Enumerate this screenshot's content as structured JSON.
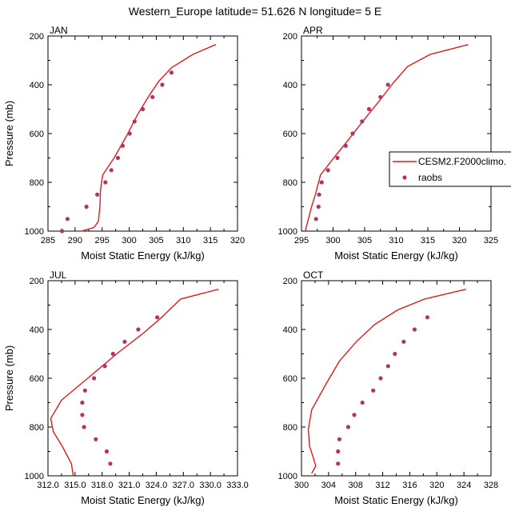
{
  "figure": {
    "title": "Western_Europe  latitude= 51.626 N longitude= 5 E"
  },
  "legend": {
    "entries": [
      {
        "label": "CESM2.F2000climo.",
        "color": "#e31a1c",
        "kind": "line"
      },
      {
        "label": "raobs",
        "color": "#b3326b",
        "kind": "marker"
      }
    ]
  },
  "chart_data": [
    {
      "type": "line",
      "panel_label": "JAN",
      "xlabel": "Moist Static Energy (kJ/kg)",
      "ylabel": "Pressure (mb)",
      "xlim": [
        285,
        320
      ],
      "ylim": [
        1000,
        200
      ],
      "x_ticks": [
        285,
        290,
        295,
        300,
        305,
        310,
        315,
        320
      ],
      "x_tick_labels": [
        "285",
        "290",
        "295",
        "300",
        "305",
        "310",
        "315",
        "320"
      ],
      "y_ticks": [
        200,
        400,
        600,
        800,
        1000
      ],
      "y_tick_labels": [
        "200",
        "400",
        "600",
        "800",
        "1000"
      ],
      "series": [
        {
          "name": "CESM2.F2000climo.",
          "style": "line",
          "points": [
            [
              291.2,
              1000
            ],
            [
              293.5,
              985
            ],
            [
              294.3,
              960
            ],
            [
              294.6,
              900
            ],
            [
              294.7,
              830
            ],
            [
              295.1,
              770
            ],
            [
              297.2,
              700
            ],
            [
              299.5,
              610
            ],
            [
              301.6,
              520
            ],
            [
              303.8,
              440
            ],
            [
              305.5,
              385
            ],
            [
              307.8,
              330
            ],
            [
              311.8,
              275
            ],
            [
              316.0,
              235
            ]
          ]
        },
        {
          "name": "raobs",
          "style": "marker",
          "points": [
            [
              287.6,
              1000
            ],
            [
              288.6,
              950
            ],
            [
              292.1,
              900
            ],
            [
              294.1,
              850
            ],
            [
              295.6,
              800
            ],
            [
              296.7,
              750
            ],
            [
              297.9,
              700
            ],
            [
              298.8,
              650
            ],
            [
              300.1,
              600
            ],
            [
              301.0,
              550
            ],
            [
              302.5,
              500
            ],
            [
              304.3,
              450
            ],
            [
              306.1,
              400
            ],
            [
              307.8,
              350
            ]
          ]
        }
      ]
    },
    {
      "type": "line",
      "panel_label": "APR",
      "xlabel": "Moist Static Energy (kJ/kg)",
      "ylabel": "",
      "xlim": [
        295,
        325
      ],
      "ylim": [
        1000,
        200
      ],
      "x_ticks": [
        295,
        300,
        305,
        310,
        315,
        320,
        325
      ],
      "x_tick_labels": [
        "295",
        "300",
        "305",
        "310",
        "315",
        "320",
        "325"
      ],
      "y_ticks": [
        200,
        400,
        600,
        800,
        1000
      ],
      "y_tick_labels": [
        "200",
        "400",
        "600",
        "800",
        "1000"
      ],
      "series": [
        {
          "name": "CESM2.F2000climo.",
          "style": "line",
          "points": [
            [
              295.6,
              1000
            ],
            [
              296.0,
              960
            ],
            [
              296.6,
              900
            ],
            [
              297.2,
              850
            ],
            [
              298.0,
              770
            ],
            [
              300.1,
              700
            ],
            [
              302.3,
              630
            ],
            [
              304.7,
              550
            ],
            [
              307.2,
              470
            ],
            [
              309.6,
              390
            ],
            [
              311.8,
              325
            ],
            [
              315.4,
              275
            ],
            [
              321.4,
              235
            ]
          ]
        },
        {
          "name": "raobs",
          "style": "marker",
          "points": [
            [
              297.3,
              950
            ],
            [
              297.7,
              900
            ],
            [
              297.8,
              850
            ],
            [
              298.2,
              800
            ],
            [
              299.2,
              750
            ],
            [
              300.7,
              700
            ],
            [
              302.0,
              650
            ],
            [
              303.1,
              600
            ],
            [
              304.6,
              550
            ],
            [
              305.7,
              500
            ],
            [
              307.5,
              450
            ],
            [
              308.7,
              400
            ]
          ]
        }
      ]
    },
    {
      "type": "line",
      "panel_label": "JUL",
      "xlabel": "Moist Static Energy (kJ/kg)",
      "ylabel": "Pressure (mb)",
      "xlim": [
        312,
        333
      ],
      "ylim": [
        1000,
        200
      ],
      "x_ticks": [
        312,
        315,
        318,
        321,
        324,
        327,
        330,
        333
      ],
      "x_tick_labels": [
        "312.0",
        "315.0",
        "318.0",
        "321.0",
        "324.0",
        "327.0",
        "330.0",
        "333.0"
      ],
      "y_ticks": [
        200,
        400,
        600,
        800,
        1000
      ],
      "y_tick_labels": [
        "200",
        "400",
        "600",
        "800",
        "1000"
      ],
      "series": [
        {
          "name": "CESM2.F2000climo.",
          "style": "line",
          "points": [
            [
              314.8,
              1000
            ],
            [
              314.6,
              950
            ],
            [
              313.6,
              880
            ],
            [
              312.6,
              820
            ],
            [
              312.3,
              765
            ],
            [
              313.5,
              690
            ],
            [
              316.4,
              600
            ],
            [
              319.6,
              500
            ],
            [
              322.4,
              420
            ],
            [
              324.6,
              350
            ],
            [
              326.7,
              275
            ],
            [
              330.9,
              235
            ]
          ]
        },
        {
          "name": "raobs",
          "style": "marker",
          "points": [
            [
              318.9,
              950
            ],
            [
              318.5,
              900
            ],
            [
              317.3,
              850
            ],
            [
              316.0,
              800
            ],
            [
              315.8,
              750
            ],
            [
              315.8,
              700
            ],
            [
              316.1,
              650
            ],
            [
              317.1,
              600
            ],
            [
              318.3,
              550
            ],
            [
              319.2,
              500
            ],
            [
              320.5,
              450
            ],
            [
              322.0,
              400
            ],
            [
              324.1,
              350
            ]
          ]
        }
      ]
    },
    {
      "type": "line",
      "panel_label": "OCT",
      "xlabel": "Moist Static Energy (kJ/kg)",
      "ylabel": "",
      "xlim": [
        300,
        328
      ],
      "ylim": [
        1000,
        200
      ],
      "x_ticks": [
        300,
        304,
        308,
        312,
        316,
        320,
        324,
        328
      ],
      "x_tick_labels": [
        "300",
        "304",
        "308",
        "312",
        "316",
        "320",
        "324",
        "328"
      ],
      "y_ticks": [
        200,
        400,
        600,
        800,
        1000
      ],
      "y_tick_labels": [
        "200",
        "400",
        "600",
        "800",
        "1000"
      ],
      "series": [
        {
          "name": "CESM2.F2000climo.",
          "style": "line",
          "points": [
            [
              301.5,
              990
            ],
            [
              302.1,
              960
            ],
            [
              301.8,
              930
            ],
            [
              301.2,
              880
            ],
            [
              301.0,
              810
            ],
            [
              301.5,
              730
            ],
            [
              303.5,
              630
            ],
            [
              305.6,
              530
            ],
            [
              308.1,
              450
            ],
            [
              310.8,
              380
            ],
            [
              314.2,
              320
            ],
            [
              318.2,
              275
            ],
            [
              324.3,
              235
            ]
          ]
        },
        {
          "name": "raobs",
          "style": "marker",
          "points": [
            [
              305.4,
              950
            ],
            [
              305.4,
              900
            ],
            [
              305.6,
              850
            ],
            [
              306.9,
              800
            ],
            [
              307.8,
              750
            ],
            [
              309.0,
              700
            ],
            [
              310.6,
              650
            ],
            [
              311.7,
              600
            ],
            [
              312.8,
              550
            ],
            [
              313.8,
              500
            ],
            [
              315.1,
              450
            ],
            [
              316.7,
              400
            ],
            [
              318.6,
              350
            ]
          ]
        }
      ]
    }
  ]
}
